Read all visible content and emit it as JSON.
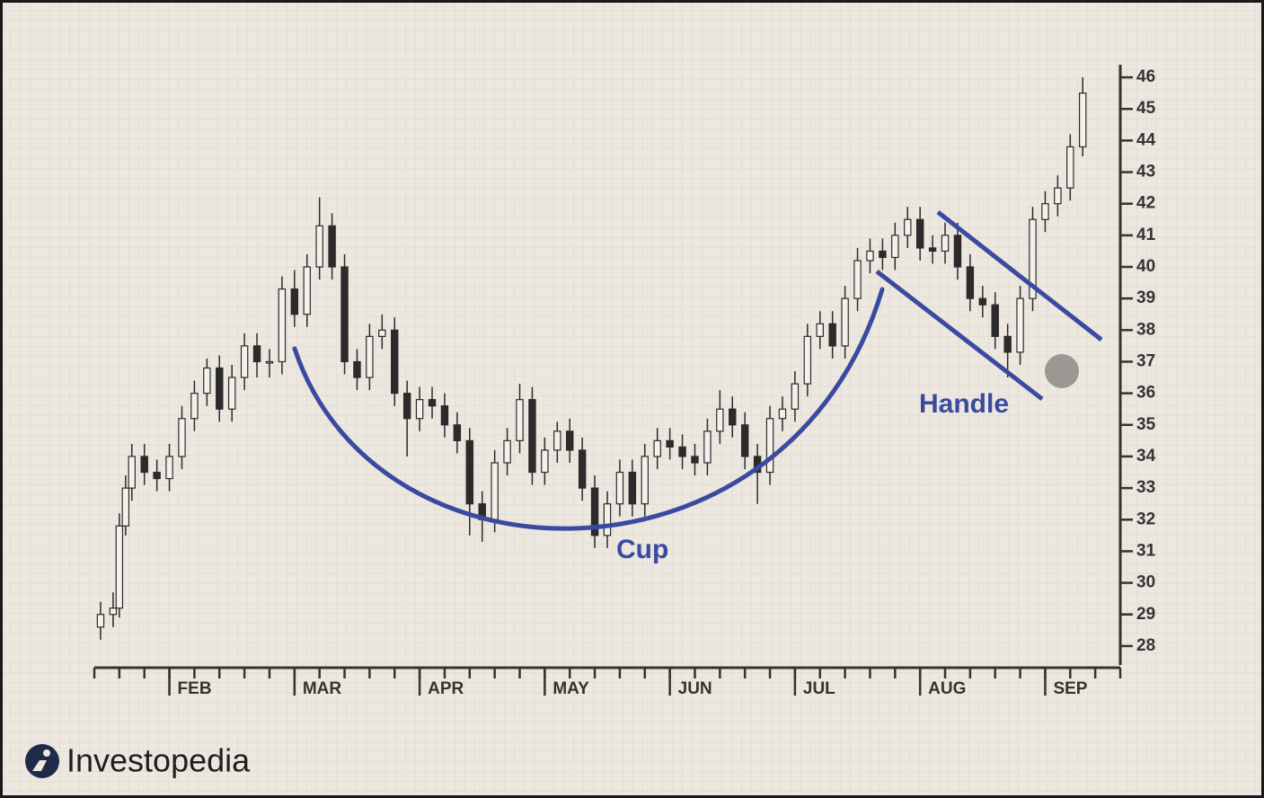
{
  "chart_data": {
    "type": "candlestick",
    "x": [
      0.25,
      0.75,
      1.0,
      1.25,
      1.5,
      2,
      2.5,
      3,
      3.5,
      4,
      4.5,
      5,
      5.5,
      6,
      6.5,
      7,
      7.5,
      8,
      8.5,
      9,
      9.5,
      10,
      10.5,
      11,
      11.5,
      12,
      12.5,
      13,
      13.5,
      14,
      14.5,
      15,
      15.5,
      16,
      16.5,
      17,
      17.5,
      18,
      18.5,
      19,
      19.5,
      20,
      20.5,
      21,
      21.5,
      22,
      22.5,
      23,
      23.5,
      24,
      24.5,
      25,
      25.5,
      26,
      26.5,
      27,
      27.5,
      28,
      28.5,
      29,
      29.5,
      30,
      30.5,
      31,
      31.5,
      32,
      32.5,
      33,
      33.5,
      34,
      34.5,
      35,
      35.5,
      36,
      36.5,
      37,
      37.5,
      38,
      38.5,
      39,
      39.5
    ],
    "open": [
      28.6,
      29,
      29.2,
      31.8,
      33,
      34,
      33.5,
      33.3,
      34,
      35.2,
      36,
      36.8,
      35.5,
      36.5,
      37.5,
      37,
      37,
      39.3,
      38.5,
      40,
      41.3,
      40,
      37,
      36.5,
      37.8,
      38,
      36,
      35.2,
      35.8,
      35.6,
      35,
      34.5,
      32.5,
      32,
      33.8,
      34.5,
      35.8,
      33.5,
      34.2,
      34.8,
      34.2,
      33,
      31.5,
      32.5,
      33.5,
      32.5,
      34,
      34.5,
      34.3,
      34,
      33.8,
      34.8,
      35.5,
      35,
      34,
      33.5,
      35.2,
      35.5,
      36.3,
      37.8,
      38.2,
      37.5,
      39,
      40.2,
      40.5,
      40.3,
      41,
      41.5,
      40.6,
      40.5,
      41,
      40,
      39,
      38.8,
      37.8,
      37.3,
      39,
      41.5,
      42,
      42.5,
      43.8
    ],
    "high": [
      29.4,
      29.7,
      32.2,
      33.4,
      34.4,
      34.4,
      33.9,
      34.4,
      35.6,
      36.4,
      37.1,
      37.2,
      36.9,
      37.9,
      37.9,
      37.4,
      39.7,
      39.9,
      40.4,
      42.2,
      41.7,
      40.4,
      37.4,
      38.2,
      38.5,
      38.4,
      36.4,
      36.2,
      36.2,
      36,
      35.4,
      34.9,
      32.9,
      34.2,
      34.9,
      36.3,
      36.2,
      34.6,
      35.1,
      35.2,
      34.6,
      33.4,
      32.9,
      33.9,
      33.9,
      34.4,
      34.9,
      34.9,
      34.7,
      34.4,
      35.2,
      36.1,
      35.9,
      35.4,
      34.4,
      35.6,
      35.9,
      36.7,
      38.2,
      38.6,
      38.6,
      39.4,
      40.6,
      40.9,
      40.9,
      41.4,
      41.9,
      41.9,
      41,
      41.4,
      41.4,
      40.4,
      39.4,
      39.2,
      38.2,
      39.4,
      41.9,
      42.4,
      42.9,
      44.2,
      46
    ],
    "low": [
      28.2,
      28.6,
      28.9,
      31.5,
      32.6,
      33.1,
      32.9,
      32.9,
      33.6,
      34.8,
      35.6,
      35.1,
      35.1,
      36.1,
      36.5,
      36.5,
      36.6,
      38.1,
      38.1,
      39.6,
      39.6,
      36.6,
      36.1,
      36.1,
      37.4,
      35.6,
      34,
      34.8,
      35.2,
      34.6,
      34.1,
      31.5,
      31.3,
      31.6,
      33.4,
      34.1,
      33.1,
      33.1,
      33.8,
      33.8,
      32.6,
      31.1,
      31.1,
      32.1,
      32.1,
      32.1,
      33.6,
      33.9,
      33.6,
      33.4,
      33.4,
      34.4,
      34.6,
      33.6,
      32.5,
      33.1,
      34.8,
      35.1,
      35.9,
      37.4,
      37.1,
      37.1,
      38.6,
      39.8,
      39.9,
      39.9,
      40.6,
      40.2,
      40.1,
      40.1,
      39.6,
      38.6,
      38.4,
      37.4,
      36.5,
      36.9,
      38.6,
      41.1,
      41.6,
      42.1,
      43.5
    ],
    "close": [
      29,
      29.2,
      31.8,
      33,
      34,
      33.5,
      33.3,
      34,
      35.2,
      36,
      36.8,
      35.5,
      36.5,
      37.5,
      37,
      37,
      39.3,
      38.5,
      40,
      41.3,
      40,
      37,
      36.5,
      37.8,
      38,
      36,
      35.2,
      35.8,
      35.6,
      35,
      34.5,
      32.5,
      32,
      33.8,
      34.5,
      35.8,
      33.5,
      34.2,
      34.8,
      34.2,
      33,
      31.5,
      32.5,
      33.5,
      32.5,
      34,
      34.5,
      34.3,
      34,
      33.8,
      34.8,
      35.5,
      35,
      34,
      33.5,
      35.2,
      35.5,
      36.3,
      37.8,
      38.2,
      37.5,
      39,
      40.2,
      40.5,
      40.3,
      41,
      41.5,
      40.6,
      40.5,
      41,
      40,
      39,
      38.8,
      37.8,
      37.3,
      39,
      41.5,
      42,
      42.5,
      43.8,
      45.5
    ],
    "up_color": "#f4f1ec",
    "down_color": "#2b2b2b",
    "xlim": [
      0,
      41
    ],
    "xticks": [
      0,
      1,
      2,
      3,
      4,
      5,
      6,
      7,
      8,
      9,
      10,
      11,
      12,
      13,
      14,
      15,
      16,
      17,
      18,
      19,
      20,
      21,
      22,
      23,
      24,
      25,
      26,
      27,
      28,
      29,
      30,
      31,
      32,
      33,
      34,
      35,
      36,
      37,
      38,
      39,
      40,
      41
    ],
    "month_ticks": [
      {
        "value": 3,
        "label": "FEB"
      },
      {
        "value": 8,
        "label": "MAR"
      },
      {
        "value": 13,
        "label": "APR"
      },
      {
        "value": 18,
        "label": "MAY"
      },
      {
        "value": 23,
        "label": "JUN"
      },
      {
        "value": 28,
        "label": "JUL"
      },
      {
        "value": 33,
        "label": "AUG"
      },
      {
        "value": 38,
        "label": "SEP"
      }
    ],
    "ylim": [
      27.4,
      46.4
    ],
    "yticks": [
      28,
      29,
      30,
      31,
      32,
      33,
      34,
      35,
      36,
      37,
      38,
      39,
      40,
      41,
      42,
      43,
      44,
      45,
      46
    ],
    "annotations": {
      "cup": "Cup",
      "handle": "Handle"
    },
    "annotation_color": "#3a4aa0"
  },
  "logo": "Investopedia"
}
